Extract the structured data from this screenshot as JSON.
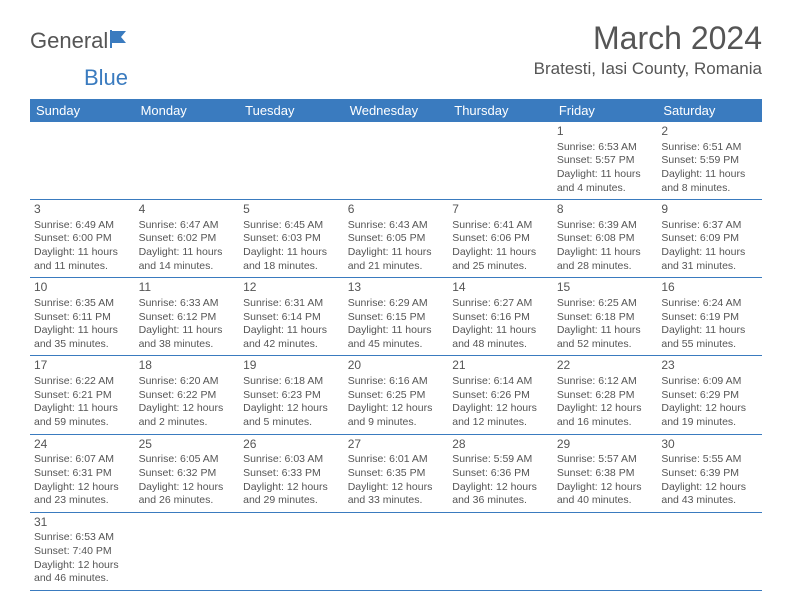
{
  "logo": {
    "part1": "General",
    "part2": "Blue"
  },
  "header": {
    "month_title": "March 2024",
    "location": "Bratesti, Iasi County, Romania"
  },
  "styling": {
    "header_bg": "#3a7bbf",
    "header_text": "#ffffff",
    "border_color": "#3a7bbf",
    "body_text": "#555555",
    "page_bg": "#ffffff",
    "title_fontsize": 32,
    "location_fontsize": 17,
    "dayheader_fontsize": 13,
    "cell_fontsize": 10.5
  },
  "day_headers": [
    "Sunday",
    "Monday",
    "Tuesday",
    "Wednesday",
    "Thursday",
    "Friday",
    "Saturday"
  ],
  "weeks": [
    [
      {
        "day": "",
        "sunrise": "",
        "sunset": "",
        "daylight": ""
      },
      {
        "day": "",
        "sunrise": "",
        "sunset": "",
        "daylight": ""
      },
      {
        "day": "",
        "sunrise": "",
        "sunset": "",
        "daylight": ""
      },
      {
        "day": "",
        "sunrise": "",
        "sunset": "",
        "daylight": ""
      },
      {
        "day": "",
        "sunrise": "",
        "sunset": "",
        "daylight": ""
      },
      {
        "day": "1",
        "sunrise": "Sunrise: 6:53 AM",
        "sunset": "Sunset: 5:57 PM",
        "daylight": "Daylight: 11 hours and 4 minutes."
      },
      {
        "day": "2",
        "sunrise": "Sunrise: 6:51 AM",
        "sunset": "Sunset: 5:59 PM",
        "daylight": "Daylight: 11 hours and 8 minutes."
      }
    ],
    [
      {
        "day": "3",
        "sunrise": "Sunrise: 6:49 AM",
        "sunset": "Sunset: 6:00 PM",
        "daylight": "Daylight: 11 hours and 11 minutes."
      },
      {
        "day": "4",
        "sunrise": "Sunrise: 6:47 AM",
        "sunset": "Sunset: 6:02 PM",
        "daylight": "Daylight: 11 hours and 14 minutes."
      },
      {
        "day": "5",
        "sunrise": "Sunrise: 6:45 AM",
        "sunset": "Sunset: 6:03 PM",
        "daylight": "Daylight: 11 hours and 18 minutes."
      },
      {
        "day": "6",
        "sunrise": "Sunrise: 6:43 AM",
        "sunset": "Sunset: 6:05 PM",
        "daylight": "Daylight: 11 hours and 21 minutes."
      },
      {
        "day": "7",
        "sunrise": "Sunrise: 6:41 AM",
        "sunset": "Sunset: 6:06 PM",
        "daylight": "Daylight: 11 hours and 25 minutes."
      },
      {
        "day": "8",
        "sunrise": "Sunrise: 6:39 AM",
        "sunset": "Sunset: 6:08 PM",
        "daylight": "Daylight: 11 hours and 28 minutes."
      },
      {
        "day": "9",
        "sunrise": "Sunrise: 6:37 AM",
        "sunset": "Sunset: 6:09 PM",
        "daylight": "Daylight: 11 hours and 31 minutes."
      }
    ],
    [
      {
        "day": "10",
        "sunrise": "Sunrise: 6:35 AM",
        "sunset": "Sunset: 6:11 PM",
        "daylight": "Daylight: 11 hours and 35 minutes."
      },
      {
        "day": "11",
        "sunrise": "Sunrise: 6:33 AM",
        "sunset": "Sunset: 6:12 PM",
        "daylight": "Daylight: 11 hours and 38 minutes."
      },
      {
        "day": "12",
        "sunrise": "Sunrise: 6:31 AM",
        "sunset": "Sunset: 6:14 PM",
        "daylight": "Daylight: 11 hours and 42 minutes."
      },
      {
        "day": "13",
        "sunrise": "Sunrise: 6:29 AM",
        "sunset": "Sunset: 6:15 PM",
        "daylight": "Daylight: 11 hours and 45 minutes."
      },
      {
        "day": "14",
        "sunrise": "Sunrise: 6:27 AM",
        "sunset": "Sunset: 6:16 PM",
        "daylight": "Daylight: 11 hours and 48 minutes."
      },
      {
        "day": "15",
        "sunrise": "Sunrise: 6:25 AM",
        "sunset": "Sunset: 6:18 PM",
        "daylight": "Daylight: 11 hours and 52 minutes."
      },
      {
        "day": "16",
        "sunrise": "Sunrise: 6:24 AM",
        "sunset": "Sunset: 6:19 PM",
        "daylight": "Daylight: 11 hours and 55 minutes."
      }
    ],
    [
      {
        "day": "17",
        "sunrise": "Sunrise: 6:22 AM",
        "sunset": "Sunset: 6:21 PM",
        "daylight": "Daylight: 11 hours and 59 minutes."
      },
      {
        "day": "18",
        "sunrise": "Sunrise: 6:20 AM",
        "sunset": "Sunset: 6:22 PM",
        "daylight": "Daylight: 12 hours and 2 minutes."
      },
      {
        "day": "19",
        "sunrise": "Sunrise: 6:18 AM",
        "sunset": "Sunset: 6:23 PM",
        "daylight": "Daylight: 12 hours and 5 minutes."
      },
      {
        "day": "20",
        "sunrise": "Sunrise: 6:16 AM",
        "sunset": "Sunset: 6:25 PM",
        "daylight": "Daylight: 12 hours and 9 minutes."
      },
      {
        "day": "21",
        "sunrise": "Sunrise: 6:14 AM",
        "sunset": "Sunset: 6:26 PM",
        "daylight": "Daylight: 12 hours and 12 minutes."
      },
      {
        "day": "22",
        "sunrise": "Sunrise: 6:12 AM",
        "sunset": "Sunset: 6:28 PM",
        "daylight": "Daylight: 12 hours and 16 minutes."
      },
      {
        "day": "23",
        "sunrise": "Sunrise: 6:09 AM",
        "sunset": "Sunset: 6:29 PM",
        "daylight": "Daylight: 12 hours and 19 minutes."
      }
    ],
    [
      {
        "day": "24",
        "sunrise": "Sunrise: 6:07 AM",
        "sunset": "Sunset: 6:31 PM",
        "daylight": "Daylight: 12 hours and 23 minutes."
      },
      {
        "day": "25",
        "sunrise": "Sunrise: 6:05 AM",
        "sunset": "Sunset: 6:32 PM",
        "daylight": "Daylight: 12 hours and 26 minutes."
      },
      {
        "day": "26",
        "sunrise": "Sunrise: 6:03 AM",
        "sunset": "Sunset: 6:33 PM",
        "daylight": "Daylight: 12 hours and 29 minutes."
      },
      {
        "day": "27",
        "sunrise": "Sunrise: 6:01 AM",
        "sunset": "Sunset: 6:35 PM",
        "daylight": "Daylight: 12 hours and 33 minutes."
      },
      {
        "day": "28",
        "sunrise": "Sunrise: 5:59 AM",
        "sunset": "Sunset: 6:36 PM",
        "daylight": "Daylight: 12 hours and 36 minutes."
      },
      {
        "day": "29",
        "sunrise": "Sunrise: 5:57 AM",
        "sunset": "Sunset: 6:38 PM",
        "daylight": "Daylight: 12 hours and 40 minutes."
      },
      {
        "day": "30",
        "sunrise": "Sunrise: 5:55 AM",
        "sunset": "Sunset: 6:39 PM",
        "daylight": "Daylight: 12 hours and 43 minutes."
      }
    ],
    [
      {
        "day": "31",
        "sunrise": "Sunrise: 6:53 AM",
        "sunset": "Sunset: 7:40 PM",
        "daylight": "Daylight: 12 hours and 46 minutes."
      },
      {
        "day": "",
        "sunrise": "",
        "sunset": "",
        "daylight": ""
      },
      {
        "day": "",
        "sunrise": "",
        "sunset": "",
        "daylight": ""
      },
      {
        "day": "",
        "sunrise": "",
        "sunset": "",
        "daylight": ""
      },
      {
        "day": "",
        "sunrise": "",
        "sunset": "",
        "daylight": ""
      },
      {
        "day": "",
        "sunrise": "",
        "sunset": "",
        "daylight": ""
      },
      {
        "day": "",
        "sunrise": "",
        "sunset": "",
        "daylight": ""
      }
    ]
  ]
}
